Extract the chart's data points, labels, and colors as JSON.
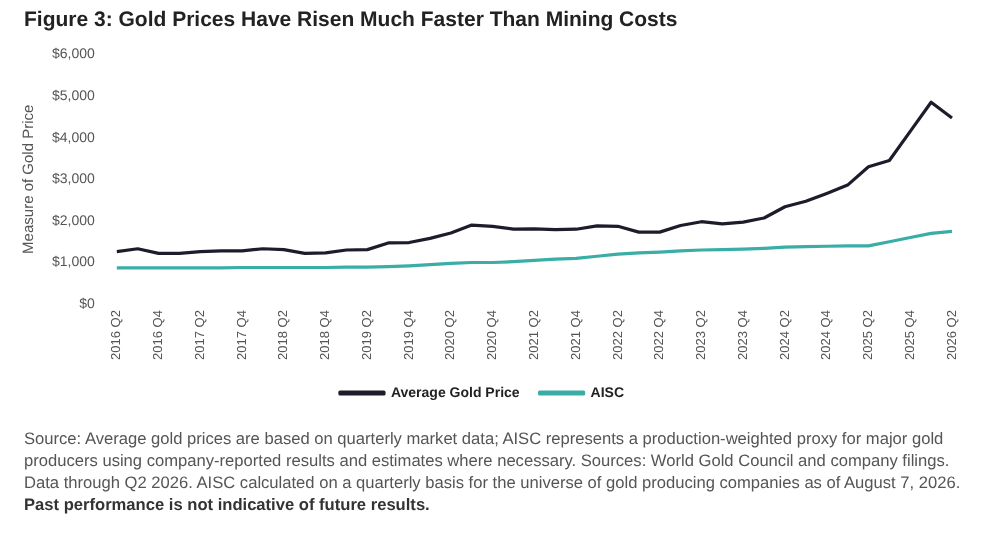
{
  "chart_data": {
    "type": "line",
    "title": "Figure 3: Gold Prices Have Risen Much Faster Than Mining Costs",
    "ylabel": "Measure of Gold Price",
    "categories": [
      "2016 Q2",
      null,
      "2016 Q4",
      null,
      "2017 Q2",
      null,
      "2017 Q4",
      null,
      "2018 Q2",
      null,
      "2018 Q4",
      null,
      "2019 Q2",
      null,
      "2019 Q4",
      null,
      "2020 Q2",
      null,
      "2020 Q4",
      null,
      "2021 Q2",
      null,
      "2021 Q4",
      null,
      "2022 Q2",
      null,
      "2022 Q4",
      null,
      "2023 Q2",
      null,
      "2023 Q4",
      null,
      "2024 Q2",
      null,
      "2024 Q4",
      null,
      "2025 Q2",
      null,
      "2025 Q4",
      null,
      "2026 Q2"
    ],
    "series": [
      {
        "name": "Average Gold Price",
        "color": "#1c1c2b",
        "values": [
          1260,
          1330,
          1220,
          1220,
          1260,
          1280,
          1280,
          1330,
          1310,
          1220,
          1230,
          1300,
          1310,
          1470,
          1480,
          1580,
          1710,
          1900,
          1870,
          1800,
          1810,
          1790,
          1800,
          1880,
          1870,
          1730,
          1730,
          1890,
          1980,
          1930,
          1970,
          2070,
          2340,
          2470,
          2660,
          2860,
          3300,
          3450,
          4150,
          4850,
          4470
        ]
      },
      {
        "name": "AISC",
        "color": "#3aaea6",
        "values": [
          870,
          870,
          870,
          870,
          870,
          870,
          880,
          880,
          880,
          880,
          880,
          890,
          890,
          900,
          920,
          950,
          980,
          1000,
          1000,
          1020,
          1050,
          1080,
          1100,
          1150,
          1200,
          1230,
          1250,
          1280,
          1300,
          1310,
          1320,
          1340,
          1370,
          1380,
          1390,
          1400,
          1400,
          1500,
          1600,
          1700,
          1750
        ]
      }
    ],
    "ylim": [
      0,
      6000
    ],
    "yticks": [
      {
        "value": 0,
        "label": "$0"
      },
      {
        "value": 1000,
        "label": "$1,000"
      },
      {
        "value": 2000,
        "label": "$2,000"
      },
      {
        "value": 3000,
        "label": "$3,000"
      },
      {
        "value": 4000,
        "label": "$4,000"
      },
      {
        "value": 5000,
        "label": "$5,000"
      },
      {
        "value": 6000,
        "label": "$6,000"
      }
    ],
    "grid": false,
    "legend": "bottom",
    "marker": "none",
    "line_style": "solid",
    "annotations": [
      "Source: Average gold prices are based on quarterly market data; AISC represents a production-weighted proxy for major gold producers using company-reported results and estimates where necessary. Sources: World Gold Council and company filings. Data through Q2 2026. AISC calculated on a quarterly basis for the universe of gold producing companies as of August 7, 2026.",
      "Past performance is not indicative of future results."
    ]
  }
}
